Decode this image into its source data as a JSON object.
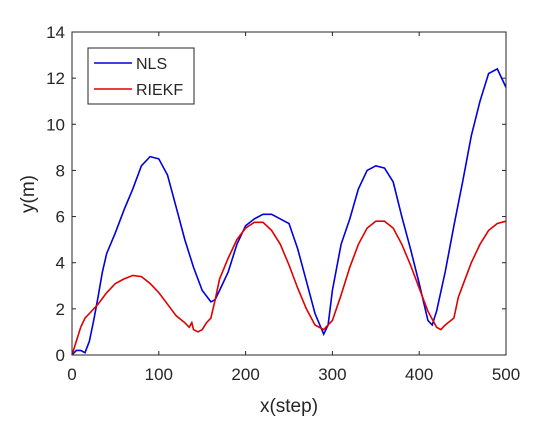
{
  "chart_data": {
    "type": "line",
    "xlabel": "x(step)",
    "ylabel": "y(m)",
    "xlim": [
      0,
      500
    ],
    "ylim": [
      0,
      14
    ],
    "xticks": [
      0,
      100,
      200,
      300,
      400,
      500
    ],
    "yticks": [
      0,
      2,
      4,
      6,
      8,
      10,
      12,
      14
    ],
    "grid": false,
    "legend": "upper-left",
    "series": [
      {
        "name": "NLS",
        "color": "#0000e0",
        "x": [
          0,
          5,
          10,
          15,
          20,
          25,
          30,
          35,
          40,
          50,
          60,
          70,
          80,
          90,
          100,
          110,
          120,
          130,
          140,
          150,
          160,
          165,
          170,
          180,
          190,
          200,
          210,
          220,
          230,
          240,
          250,
          260,
          270,
          280,
          290,
          295,
          300,
          310,
          320,
          330,
          340,
          350,
          360,
          370,
          380,
          390,
          400,
          410,
          415,
          420,
          430,
          440,
          450,
          460,
          470,
          480,
          490,
          500
        ],
        "values": [
          0,
          0.2,
          0.2,
          0.1,
          0.6,
          1.5,
          2.5,
          3.6,
          4.4,
          5.3,
          6.3,
          7.2,
          8.2,
          8.6,
          8.5,
          7.8,
          6.4,
          5,
          3.8,
          2.8,
          2.3,
          2.4,
          2.8,
          3.6,
          4.8,
          5.6,
          5.9,
          6.1,
          6.1,
          5.9,
          5.7,
          4.6,
          3.2,
          1.8,
          0.9,
          1.3,
          2.8,
          4.8,
          5.9,
          7.2,
          8.0,
          8.2,
          8.1,
          7.5,
          6,
          4.6,
          3.1,
          1.5,
          1.3,
          1.9,
          3.6,
          5.6,
          7.5,
          9.5,
          11,
          12.2,
          12.4,
          11.6
        ]
      },
      {
        "name": "RIEKF",
        "color": "#e00000",
        "x": [
          0,
          5,
          10,
          15,
          20,
          30,
          40,
          50,
          60,
          70,
          80,
          90,
          100,
          110,
          120,
          130,
          135,
          138,
          140,
          145,
          150,
          155,
          160,
          165,
          170,
          180,
          190,
          200,
          210,
          220,
          230,
          240,
          250,
          260,
          270,
          280,
          290,
          300,
          310,
          320,
          330,
          340,
          350,
          360,
          370,
          380,
          390,
          400,
          410,
          420,
          425,
          430,
          440,
          445,
          450,
          460,
          470,
          480,
          490,
          500
        ],
        "values": [
          0,
          0.6,
          1.2,
          1.6,
          1.8,
          2.2,
          2.7,
          3.1,
          3.3,
          3.45,
          3.4,
          3.1,
          2.7,
          2.2,
          1.7,
          1.4,
          1.2,
          1.4,
          1.1,
          1.0,
          1.1,
          1.4,
          1.6,
          2.4,
          3.3,
          4.2,
          5,
          5.5,
          5.75,
          5.75,
          5.4,
          4.8,
          3.9,
          2.9,
          2.0,
          1.3,
          1.1,
          1.5,
          2.6,
          3.8,
          4.8,
          5.5,
          5.8,
          5.8,
          5.5,
          4.8,
          3.9,
          2.9,
          1.9,
          1.2,
          1.1,
          1.3,
          1.6,
          2.5,
          3,
          4,
          4.8,
          5.4,
          5.7,
          5.8
        ]
      }
    ]
  }
}
